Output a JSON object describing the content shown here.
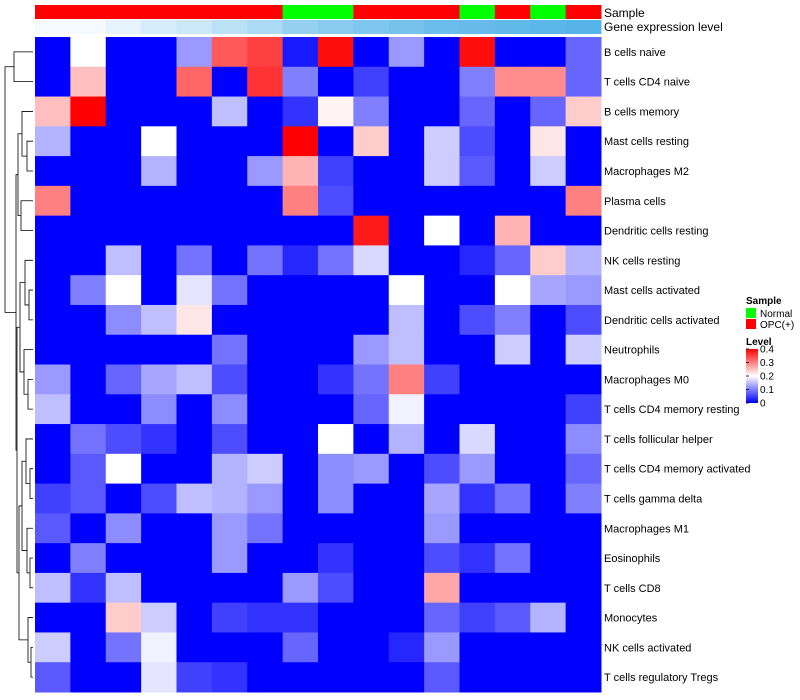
{
  "chart_data": {
    "type": "heatmap",
    "title": "",
    "annotation_tracks": [
      {
        "name": "Sample",
        "label": "Sample"
      },
      {
        "name": "Gene expression level",
        "label": "Gene expression level"
      }
    ],
    "sample_groups": [
      "OPC(+)",
      "OPC(+)",
      "OPC(+)",
      "OPC(+)",
      "OPC(+)",
      "OPC(+)",
      "OPC(+)",
      "Normal",
      "Normal",
      "OPC(+)",
      "OPC(+)",
      "OPC(+)",
      "Normal",
      "OPC(+)",
      "Normal",
      "OPC(+)"
    ],
    "expression_track": [
      0.02,
      0.02,
      0.05,
      0.08,
      0.1,
      0.13,
      0.16,
      0.2,
      0.22,
      0.24,
      0.26,
      0.28,
      0.29,
      0.3,
      0.31,
      0.32
    ],
    "rows": [
      "B cells naive",
      "T cells CD4 naive",
      "B cells memory",
      "Mast cells resting",
      "Macrophages M2",
      "Plasma cells",
      "Dendritic cells resting",
      "NK cells resting",
      "Mast cells activated",
      "Dendritic cells activated",
      "Neutrophils",
      "Macrophages M0",
      "T cells CD4 memory resting",
      "T cells follicular helper",
      "T cells CD4 memory activated",
      "T cells gamma delta",
      "Macrophages M1",
      "Eosinophils",
      "T cells CD8",
      "Monocytes",
      "NK cells activated",
      "T cells regulatory  Tregs"
    ],
    "values": [
      [
        0.0,
        0.2,
        0.0,
        0.0,
        0.12,
        0.33,
        0.35,
        0.02,
        0.39,
        0.0,
        0.12,
        0.0,
        0.39,
        0.0,
        0.0,
        0.08
      ],
      [
        0.0,
        0.25,
        0.0,
        0.0,
        0.32,
        0.0,
        0.36,
        0.1,
        0.0,
        0.05,
        0.0,
        0.0,
        0.1,
        0.29,
        0.29,
        0.08
      ],
      [
        0.25,
        0.4,
        0.0,
        0.0,
        0.0,
        0.15,
        0.0,
        0.04,
        0.21,
        0.1,
        0.0,
        0.0,
        0.08,
        0.0,
        0.08,
        0.24
      ],
      [
        0.14,
        0.0,
        0.0,
        0.2,
        0.0,
        0.0,
        0.0,
        0.4,
        0.0,
        0.24,
        0.0,
        0.16,
        0.06,
        0.0,
        0.22,
        0.0
      ],
      [
        0.0,
        0.0,
        0.0,
        0.14,
        0.0,
        0.0,
        0.12,
        0.26,
        0.05,
        0.0,
        0.0,
        0.16,
        0.07,
        0.0,
        0.16,
        0.0
      ],
      [
        0.3,
        0.0,
        0.0,
        0.0,
        0.0,
        0.0,
        0.0,
        0.3,
        0.06,
        0.0,
        0.0,
        0.0,
        0.0,
        0.0,
        0.0,
        0.3
      ],
      [
        0.0,
        0.0,
        0.0,
        0.0,
        0.0,
        0.0,
        0.0,
        0.0,
        0.0,
        0.38,
        0.0,
        0.2,
        0.0,
        0.26,
        0.0,
        0.0
      ],
      [
        0.0,
        0.0,
        0.15,
        0.0,
        0.09,
        0.0,
        0.09,
        0.03,
        0.09,
        0.17,
        0.0,
        0.0,
        0.03,
        0.08,
        0.24,
        0.14
      ],
      [
        0.0,
        0.1,
        0.2,
        0.0,
        0.18,
        0.09,
        0.0,
        0.0,
        0.0,
        0.0,
        0.2,
        0.0,
        0.0,
        0.2,
        0.13,
        0.12
      ],
      [
        0.0,
        0.0,
        0.11,
        0.15,
        0.22,
        0.0,
        0.0,
        0.0,
        0.0,
        0.0,
        0.15,
        0.0,
        0.06,
        0.1,
        0.0,
        0.06
      ],
      [
        0.0,
        0.0,
        0.0,
        0.0,
        0.0,
        0.09,
        0.0,
        0.0,
        0.0,
        0.12,
        0.15,
        0.0,
        0.0,
        0.16,
        0.0,
        0.16
      ],
      [
        0.12,
        0.0,
        0.08,
        0.13,
        0.15,
        0.06,
        0.0,
        0.0,
        0.04,
        0.09,
        0.3,
        0.05,
        0.0,
        0.0,
        0.0,
        0.0
      ],
      [
        0.15,
        0.0,
        0.0,
        0.11,
        0.0,
        0.11,
        0.0,
        0.0,
        0.0,
        0.08,
        0.19,
        0.0,
        0.0,
        0.0,
        0.0,
        0.05
      ],
      [
        0.0,
        0.09,
        0.06,
        0.04,
        0.0,
        0.06,
        0.0,
        0.0,
        0.2,
        0.0,
        0.14,
        0.0,
        0.17,
        0.0,
        0.0,
        0.11
      ],
      [
        0.0,
        0.07,
        0.2,
        0.0,
        0.0,
        0.14,
        0.16,
        0.0,
        0.11,
        0.12,
        0.0,
        0.06,
        0.12,
        0.0,
        0.0,
        0.08
      ],
      [
        0.05,
        0.07,
        0.0,
        0.06,
        0.15,
        0.14,
        0.12,
        0.0,
        0.11,
        0.0,
        0.0,
        0.13,
        0.04,
        0.09,
        0.0,
        0.1
      ],
      [
        0.07,
        0.0,
        0.11,
        0.0,
        0.0,
        0.12,
        0.09,
        0.0,
        0.0,
        0.0,
        0.0,
        0.12,
        0.0,
        0.0,
        0.0,
        0.0
      ],
      [
        0.0,
        0.1,
        0.0,
        0.0,
        0.0,
        0.12,
        0.0,
        0.0,
        0.04,
        0.0,
        0.0,
        0.06,
        0.04,
        0.09,
        0.0,
        0.0
      ],
      [
        0.15,
        0.04,
        0.15,
        0.0,
        0.0,
        0.0,
        0.0,
        0.12,
        0.06,
        0.0,
        0.0,
        0.27,
        0.0,
        0.0,
        0.0,
        0.0
      ],
      [
        0.0,
        0.0,
        0.24,
        0.16,
        0.0,
        0.05,
        0.04,
        0.04,
        0.0,
        0.0,
        0.0,
        0.08,
        0.05,
        0.07,
        0.14,
        0.0
      ],
      [
        0.16,
        0.0,
        0.09,
        0.19,
        0.0,
        0.0,
        0.0,
        0.08,
        0.0,
        0.0,
        0.03,
        0.12,
        0.0,
        0.0,
        0.0,
        0.0
      ],
      [
        0.07,
        0.0,
        0.0,
        0.18,
        0.05,
        0.04,
        0.0,
        0.0,
        0.0,
        0.0,
        0.0,
        0.07,
        0.0,
        0.0,
        0.0,
        0.0
      ]
    ],
    "legend": {
      "sample_title": "Sample",
      "sample_items": [
        {
          "label": "Normal",
          "color": "#00ff00"
        },
        {
          "label": "OPC(+)",
          "color": "#ff0000"
        }
      ],
      "level_title": "Level",
      "level_ticks": [
        "0.4",
        "0.3",
        "0.2",
        "0.1",
        "0"
      ],
      "level_tick_values": [
        0.4,
        0.3,
        0.2,
        0.1,
        0
      ],
      "level_range": [
        0,
        0.4
      ]
    },
    "colors": {
      "low": "#0000ff",
      "mid": "#ffffff",
      "high": "#ff0000",
      "expr_low": "#ffffff",
      "expr_high": "#56b4e9",
      "normal": "#00ff00",
      "opc": "#ff0000"
    }
  }
}
